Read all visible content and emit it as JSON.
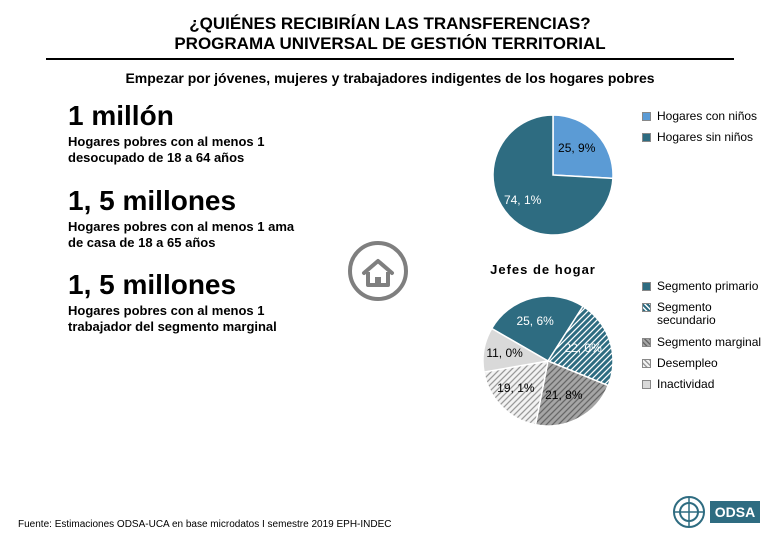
{
  "titles": {
    "line1": "¿QUIÉNES RECIBIRÍAN LAS TRANSFERENCIAS?",
    "line2": "PROGRAMA UNIVERSAL DE GESTIÓN TERRITORIAL"
  },
  "subtitle": "Empezar por jóvenes, mujeres y trabajadores indigentes de los hogares pobres",
  "blocks": [
    {
      "value": "1 millón",
      "desc": "Hogares pobres con al menos 1 desocupado de 18 a 64 años"
    },
    {
      "value": "1, 5 millones",
      "desc": "Hogares pobres con al menos 1 ama de casa de 18 a 65 años"
    },
    {
      "value": "1, 5 millones",
      "desc": "Hogares pobres con al menos 1 trabajador del segmento marginal"
    }
  ],
  "chart1": {
    "type": "pie",
    "radius": 60,
    "background_color": "#ffffff",
    "series": [
      {
        "name": "Hogares con niños",
        "value": 25.9,
        "label": "25, 9%",
        "color": "#5b9bd5",
        "hatch": false
      },
      {
        "name": "Hogares sin niños",
        "value": 74.1,
        "label": "74, 1%",
        "color": "#2e6c81",
        "hatch": false
      }
    ],
    "legend_position": "right",
    "label_fontsize": 12,
    "start_angle_deg": -90
  },
  "chart2": {
    "type": "pie",
    "title": "Jefes de hogar",
    "radius": 65,
    "background_color": "#ffffff",
    "series": [
      {
        "name": "Segmento primario",
        "value": 25.6,
        "label": "25, 6%",
        "color": "#2e6c81",
        "hatch": false
      },
      {
        "name": "Segmento secundario",
        "value": 22.0,
        "label": "22, 0%",
        "color": "#2e6c81",
        "hatch": true,
        "hatch_stroke": "#ffffff"
      },
      {
        "name": "Segmento marginal",
        "value": 21.8,
        "label": "21, 8%",
        "color": "#a5a5a5",
        "hatch": true,
        "hatch_stroke": "#666666"
      },
      {
        "name": "Desempleo",
        "value": 19.1,
        "label": "19, 1%",
        "color": "#f2f2f2",
        "hatch": true,
        "hatch_stroke": "#999999"
      },
      {
        "name": "Inactividad",
        "value": 11.0,
        "label": "11, 0%",
        "color": "#d9d9d9",
        "hatch": false
      }
    ],
    "legend_position": "right",
    "label_fontsize": 12,
    "start_angle_deg": -150
  },
  "icons": {
    "house_stroke": "#7f7f7f"
  },
  "logo": {
    "text": "ODSA",
    "circle_color": "#2e6c81",
    "box_color": "#2e6c81",
    "text_color": "#ffffff"
  },
  "footnote": "Fuente: Estimaciones ODSA-UCA en base microdatos I semestre 2019 EPH-INDEC"
}
